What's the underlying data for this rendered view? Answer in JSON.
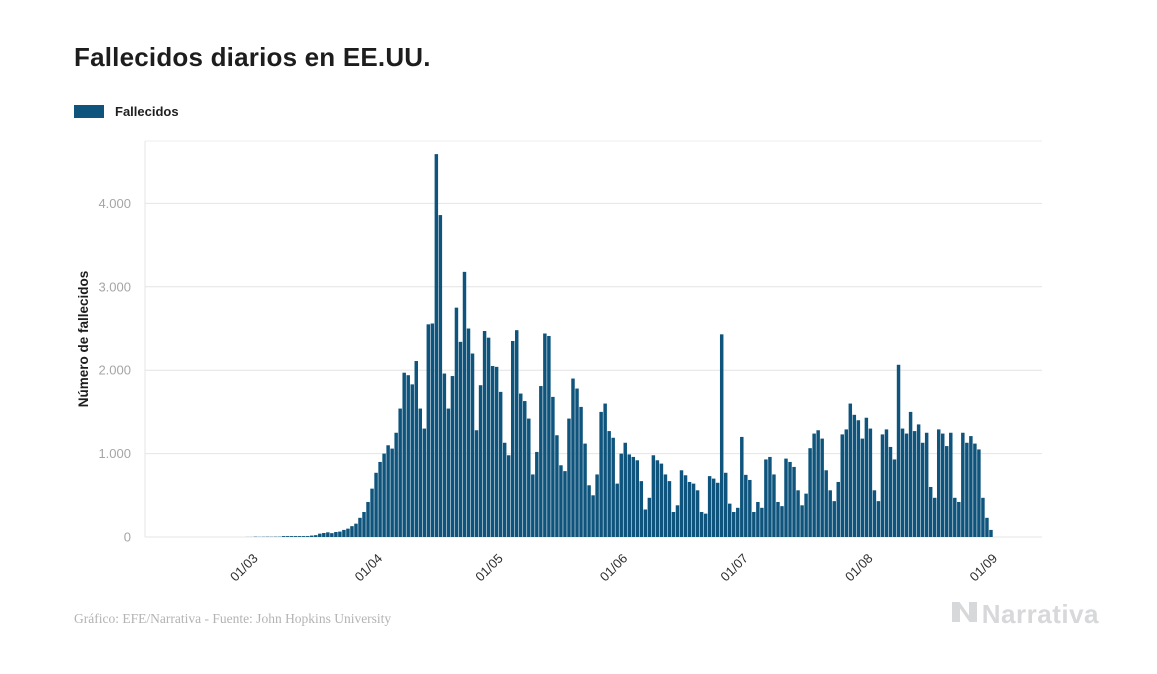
{
  "title": "Fallecidos diarios en EE.UU.",
  "legend": {
    "label": "Fallecidos",
    "swatch_color": "#0e547c"
  },
  "y_axis": {
    "title": "Número de fallecidos",
    "tick_labels": [
      "0",
      "1.000",
      "2.000",
      "3.000",
      "4.000"
    ],
    "tick_values": [
      0,
      1000,
      2000,
      3000,
      4000
    ]
  },
  "x_axis": {
    "tick_labels": [
      "01/03",
      "01/04",
      "01/05",
      "01/06",
      "01/07",
      "01/08",
      "01/09"
    ]
  },
  "footer": {
    "credit": "Gráfico: EFE/Narrativa - Fuente: John Hopkins University"
  },
  "branding": {
    "logo_text": "Narrativa"
  },
  "chart_data": {
    "type": "bar",
    "series_name": "Fallecidos",
    "bar_color": "#0e547c",
    "grid": true,
    "legend_position": "top-left",
    "x_unit": "day",
    "x_start_date": "2020-02-04",
    "x_end_date": "2020-09-01",
    "month_tick_day_indices": [
      26,
      57,
      87,
      118,
      148,
      179,
      210
    ],
    "ylim": [
      0,
      4750
    ],
    "peak_value": 4591,
    "values": [
      0,
      0,
      0,
      0,
      0,
      0,
      0,
      0,
      0,
      0,
      0,
      0,
      0,
      0,
      0,
      0,
      0,
      0,
      0,
      0,
      0,
      0,
      0,
      0,
      0,
      1,
      1,
      4,
      2,
      3,
      4,
      3,
      4,
      4,
      5,
      6,
      7,
      8,
      6,
      9,
      11,
      17,
      22,
      40,
      48,
      56,
      46,
      60,
      65,
      85,
      100,
      130,
      160,
      230,
      300,
      420,
      580,
      770,
      900,
      1000,
      1100,
      1060,
      1250,
      1540,
      1970,
      1940,
      1830,
      2110,
      1540,
      1300,
      2550,
      2560,
      4591,
      3860,
      1960,
      1540,
      1930,
      2750,
      2340,
      3179,
      2500,
      2200,
      1280,
      1820,
      2470,
      2390,
      2050,
      2040,
      1740,
      1130,
      980,
      2350,
      2480,
      1720,
      1630,
      1420,
      750,
      1020,
      1810,
      2440,
      2410,
      1680,
      1220,
      860,
      790,
      1420,
      1900,
      1780,
      1560,
      1120,
      620,
      500,
      750,
      1500,
      1600,
      1270,
      1190,
      640,
      1000,
      1130,
      990,
      960,
      920,
      670,
      330,
      470,
      980,
      920,
      880,
      750,
      670,
      300,
      380,
      800,
      740,
      660,
      640,
      560,
      300,
      280,
      730,
      700,
      650,
      2430,
      770,
      400,
      300,
      350,
      1200,
      745,
      684,
      300,
      420,
      350,
      930,
      960,
      750,
      420,
      370,
      940,
      900,
      840,
      560,
      380,
      520,
      1065,
      1240,
      1280,
      1180,
      800,
      560,
      430,
      660,
      1230,
      1290,
      1600,
      1465,
      1400,
      1180,
      1430,
      1300,
      560,
      430,
      1230,
      1290,
      1080,
      930,
      2065,
      1300,
      1240,
      1500,
      1270,
      1350,
      1130,
      1250,
      600,
      470,
      1290,
      1240,
      1090,
      1250,
      470,
      420,
      1250,
      1130,
      1210,
      1120,
      1050,
      470,
      230,
      85
    ]
  }
}
